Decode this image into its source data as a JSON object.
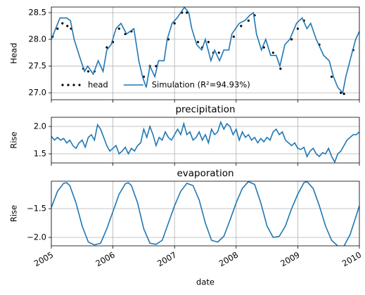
{
  "chart_data": [
    {
      "type": "line",
      "ylabel": "Head",
      "grid": true,
      "legend": "lower left",
      "xlim": [
        2005,
        2010
      ],
      "xticks": [
        2005,
        2006,
        2007,
        2008,
        2009,
        2010
      ],
      "ylim": [
        26.87,
        28.605
      ],
      "yticks": [
        {
          "value": 27,
          "label": "27.0"
        },
        27.5,
        {
          "value": 28,
          "label": "28.0"
        },
        28.5
      ],
      "series": [
        {
          "name": "head",
          "color": "#000000",
          "style": "points",
          "x": [
            2005.02,
            2005.1,
            2005.18,
            2005.26,
            2005.32,
            2005.52,
            2005.6,
            2005.7,
            2005.9,
            2006.0,
            2006.1,
            2006.2,
            2006.3,
            2006.5,
            2006.6,
            2006.7,
            2006.9,
            2007.0,
            2007.12,
            2007.2,
            2007.38,
            2007.45,
            2007.55,
            2007.63,
            2007.72,
            2007.96,
            2008.08,
            2008.2,
            2008.3,
            2008.45,
            2008.6,
            2008.72,
            2008.9,
            2009.0,
            2009.1,
            2009.35,
            2009.55,
            2009.7,
            2009.75,
            2009.9
          ],
          "values": [
            28.05,
            28.2,
            28.3,
            28.25,
            28.2,
            27.45,
            27.4,
            27.4,
            27.85,
            27.95,
            28.2,
            28.1,
            28.15,
            27.3,
            27.5,
            27.5,
            28.0,
            28.3,
            28.5,
            28.5,
            27.95,
            27.85,
            27.95,
            27.75,
            27.75,
            28.05,
            28.25,
            28.35,
            28.45,
            27.85,
            27.75,
            27.45,
            28.0,
            28.2,
            28.35,
            27.9,
            27.3,
            27.0,
            26.98,
            27.8
          ]
        },
        {
          "name": "Simulation (R²=94.93%)",
          "color": "#1f77b4",
          "style": "line",
          "x": [
            2005.0,
            2005.14,
            2005.25,
            2005.31,
            2005.37,
            2005.48,
            2005.54,
            2005.59,
            2005.68,
            2005.76,
            2005.84,
            2005.9,
            2005.97,
            2006.05,
            2006.13,
            2006.22,
            2006.34,
            2006.42,
            2006.48,
            2006.54,
            2006.6,
            2006.68,
            2006.74,
            2006.83,
            2006.88,
            2006.96,
            2007.04,
            2007.16,
            2007.23,
            2007.28,
            2007.36,
            2007.44,
            2007.5,
            2007.59,
            2007.65,
            2007.73,
            2007.8,
            2007.88,
            2007.93,
            2008.05,
            2008.14,
            2008.22,
            2008.28,
            2008.33,
            2008.41,
            2008.48,
            2008.56,
            2008.65,
            2008.71,
            2008.79,
            2008.87,
            2008.98,
            2009.07,
            2009.15,
            2009.21,
            2009.3,
            2009.42,
            2009.51,
            2009.58,
            2009.65,
            2009.73,
            2009.78,
            2009.87,
            2009.94,
            2010.0
          ],
          "values": [
            28.0,
            28.4,
            28.4,
            28.35,
            28.0,
            27.6,
            27.4,
            27.5,
            27.35,
            27.6,
            27.4,
            27.8,
            27.9,
            28.2,
            28.3,
            28.1,
            28.2,
            27.6,
            27.3,
            27.1,
            27.5,
            27.3,
            27.6,
            27.6,
            28.0,
            28.3,
            28.4,
            28.6,
            28.5,
            28.2,
            27.9,
            27.8,
            28.0,
            27.6,
            27.8,
            27.6,
            27.8,
            27.8,
            28.1,
            28.3,
            28.35,
            28.45,
            28.5,
            28.1,
            27.8,
            28.0,
            27.7,
            27.7,
            27.5,
            27.9,
            28.0,
            28.3,
            28.4,
            28.2,
            28.3,
            28.0,
            27.7,
            27.6,
            27.3,
            27.1,
            27.0,
            27.3,
            27.7,
            28.0,
            28.15
          ]
        }
      ]
    },
    {
      "type": "line",
      "title": "precipitation",
      "ylabel": "Rise",
      "grid": true,
      "xlim": [
        2005,
        2010
      ],
      "xticks": [
        2005,
        2006,
        2007,
        2008,
        2009,
        2010
      ],
      "ylim": [
        1.333,
        2.167
      ],
      "yticks": [
        1.5,
        {
          "value": 2,
          "label": "2.0"
        }
      ],
      "series": [
        {
          "color": "#1f77b4",
          "style": "line",
          "x": [
            2005.0,
            2005.05,
            2005.1,
            2005.15,
            2005.2,
            2005.25,
            2005.3,
            2005.35,
            2005.4,
            2005.45,
            2005.5,
            2005.55,
            2005.6,
            2005.65,
            2005.7,
            2005.75,
            2005.8,
            2005.85,
            2005.9,
            2005.95,
            2006.0,
            2006.05,
            2006.1,
            2006.15,
            2006.2,
            2006.25,
            2006.3,
            2006.35,
            2006.4,
            2006.45,
            2006.5,
            2006.55,
            2006.6,
            2006.65,
            2006.7,
            2006.75,
            2006.8,
            2006.85,
            2006.9,
            2006.95,
            2007.0,
            2007.05,
            2007.1,
            2007.15,
            2007.2,
            2007.25,
            2007.3,
            2007.35,
            2007.4,
            2007.45,
            2007.5,
            2007.55,
            2007.6,
            2007.65,
            2007.7,
            2007.75,
            2007.8,
            2007.85,
            2007.9,
            2007.95,
            2008.0,
            2008.05,
            2008.1,
            2008.15,
            2008.2,
            2008.25,
            2008.3,
            2008.35,
            2008.4,
            2008.45,
            2008.5,
            2008.55,
            2008.6,
            2008.65,
            2008.7,
            2008.75,
            2008.8,
            2008.85,
            2008.9,
            2008.95,
            2009.0,
            2009.05,
            2009.1,
            2009.15,
            2009.2,
            2009.25,
            2009.3,
            2009.35,
            2009.4,
            2009.45,
            2009.5,
            2009.55,
            2009.6,
            2009.65,
            2009.7,
            2009.75,
            2009.8,
            2009.85,
            2009.9,
            2009.95,
            2010.0
          ],
          "values": [
            1.82,
            1.75,
            1.8,
            1.75,
            1.78,
            1.7,
            1.75,
            1.65,
            1.6,
            1.7,
            1.75,
            1.62,
            1.8,
            1.85,
            1.75,
            2.03,
            1.95,
            1.8,
            1.65,
            1.55,
            1.6,
            1.65,
            1.5,
            1.55,
            1.62,
            1.5,
            1.6,
            1.55,
            1.65,
            1.7,
            1.95,
            1.8,
            2.0,
            1.85,
            1.65,
            1.8,
            1.75,
            1.9,
            1.8,
            1.75,
            1.85,
            1.95,
            1.85,
            2.05,
            1.85,
            1.9,
            1.75,
            1.8,
            1.9,
            1.75,
            1.85,
            1.7,
            1.95,
            1.85,
            1.9,
            2.08,
            1.95,
            2.05,
            2.0,
            1.85,
            1.95,
            1.75,
            1.9,
            1.8,
            1.85,
            1.75,
            1.8,
            1.7,
            1.78,
            1.72,
            1.8,
            1.75,
            1.9,
            1.95,
            1.85,
            1.9,
            1.75,
            1.7,
            1.65,
            1.7,
            1.6,
            1.58,
            1.62,
            1.45,
            1.55,
            1.6,
            1.5,
            1.45,
            1.52,
            1.5,
            1.6,
            1.45,
            1.35,
            1.5,
            1.55,
            1.65,
            1.75,
            1.8,
            1.85,
            1.85,
            1.9
          ]
        }
      ]
    },
    {
      "type": "line",
      "title": "evaporation",
      "ylabel": "Rise",
      "xlabel": "date",
      "grid": true,
      "xlim": [
        2005,
        2010
      ],
      "xticks": [
        2005,
        2006,
        2007,
        2008,
        2009,
        2010
      ],
      "ylim": [
        -2.146,
        -1.024
      ],
      "yticks": [
        {
          "value": -2,
          "label": "−2.0"
        },
        {
          "value": -1.5,
          "label": "−1.5"
        }
      ],
      "series": [
        {
          "color": "#1f77b4",
          "style": "line",
          "x": [
            2005.0,
            2005.1,
            2005.2,
            2005.25,
            2005.3,
            2005.4,
            2005.5,
            2005.6,
            2005.7,
            2005.8,
            2005.9,
            2006.0,
            2006.1,
            2006.2,
            2006.25,
            2006.3,
            2006.4,
            2006.5,
            2006.6,
            2006.7,
            2006.8,
            2006.9,
            2007.0,
            2007.1,
            2007.2,
            2007.3,
            2007.4,
            2007.5,
            2007.6,
            2007.7,
            2007.8,
            2007.9,
            2008.0,
            2008.1,
            2008.2,
            2008.3,
            2008.4,
            2008.5,
            2008.6,
            2008.7,
            2008.8,
            2008.9,
            2009.0,
            2009.1,
            2009.15,
            2009.25,
            2009.35,
            2009.45,
            2009.55,
            2009.65,
            2009.75,
            2009.85,
            2009.95,
            2010.0
          ],
          "values": [
            -1.48,
            -1.2,
            -1.06,
            -1.05,
            -1.1,
            -1.4,
            -1.8,
            -2.08,
            -2.13,
            -2.1,
            -1.85,
            -1.55,
            -1.25,
            -1.07,
            -1.05,
            -1.1,
            -1.4,
            -1.85,
            -2.1,
            -2.12,
            -2.05,
            -1.75,
            -1.45,
            -1.2,
            -1.06,
            -1.1,
            -1.35,
            -1.75,
            -2.05,
            -2.08,
            -1.98,
            -1.7,
            -1.4,
            -1.15,
            -1.03,
            -1.08,
            -1.4,
            -1.8,
            -2.0,
            -1.98,
            -1.8,
            -1.5,
            -1.25,
            -1.05,
            -1.03,
            -1.15,
            -1.45,
            -1.8,
            -2.05,
            -2.15,
            -2.15,
            -1.95,
            -1.62,
            -1.45
          ]
        }
      ]
    }
  ]
}
